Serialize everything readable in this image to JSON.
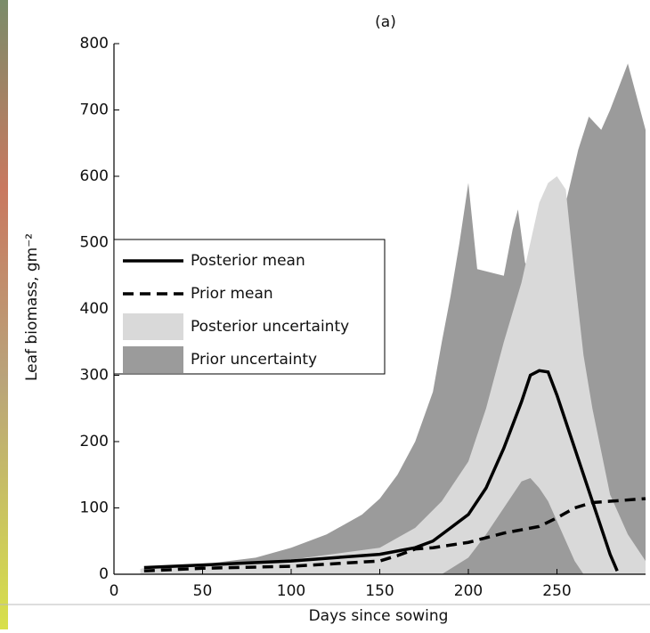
{
  "chart_data": {
    "type": "area-band-line",
    "title": "(a)",
    "xlabel": "Days since sowing",
    "ylabel": "Leaf biomass, gm⁻²",
    "xlim": [
      0,
      300
    ],
    "ylim": [
      0,
      800
    ],
    "xticks": [
      0,
      50,
      100,
      150,
      200,
      250
    ],
    "yticks": [
      0,
      100,
      200,
      300,
      400,
      500,
      600,
      700,
      800
    ],
    "series": [
      {
        "name": "Prior uncertainty",
        "kind": "band",
        "color": "#9b9b9b",
        "x": [
          15,
          30,
          50,
          80,
          100,
          120,
          140,
          150,
          160,
          170,
          180,
          185,
          190,
          195,
          200,
          205,
          220,
          225,
          228,
          232,
          236,
          245,
          255,
          262,
          268,
          275,
          280,
          290,
          295,
          300
        ],
        "upper": [
          8,
          12,
          15,
          25,
          40,
          60,
          90,
          114,
          150,
          200,
          275,
          350,
          420,
          500,
          590,
          460,
          450,
          520,
          550,
          470,
          450,
          500,
          560,
          640,
          690,
          670,
          700,
          770,
          720,
          670
        ],
        "lower": [
          0,
          0,
          0,
          0,
          0,
          0,
          0,
          0,
          0,
          0,
          0,
          0,
          0,
          0,
          0,
          0,
          0,
          0,
          0,
          0,
          0,
          0,
          0,
          0,
          0,
          0,
          0,
          0,
          0,
          0
        ]
      },
      {
        "name": "Posterior uncertainty",
        "kind": "band",
        "color": "#d9d9d9",
        "x": [
          15,
          50,
          100,
          150,
          170,
          185,
          200,
          210,
          220,
          230,
          235,
          240,
          245,
          250,
          255,
          260,
          265,
          270,
          280,
          290,
          300
        ],
        "upper": [
          8,
          12,
          22,
          40,
          70,
          110,
          170,
          250,
          350,
          440,
          500,
          560,
          590,
          600,
          580,
          450,
          330,
          250,
          120,
          60,
          20
        ],
        "lower": [
          0,
          0,
          0,
          0,
          0,
          0,
          25,
          60,
          100,
          140,
          145,
          130,
          110,
          80,
          50,
          20,
          0,
          0,
          0,
          0,
          0
        ]
      },
      {
        "name": "Posterior mean",
        "kind": "line",
        "dash": false,
        "color": "#000000",
        "x": [
          17,
          50,
          100,
          150,
          170,
          180,
          190,
          200,
          210,
          220,
          230,
          235,
          240,
          245,
          250,
          260,
          270,
          280,
          284
        ],
        "values": [
          10,
          14,
          20,
          30,
          40,
          50,
          70,
          90,
          130,
          190,
          260,
          300,
          307,
          305,
          270,
          190,
          110,
          30,
          5
        ]
      },
      {
        "name": "Prior mean",
        "kind": "line",
        "dash": true,
        "color": "#000000",
        "x": [
          17,
          50,
          100,
          150,
          160,
          170,
          180,
          200,
          220,
          240,
          250,
          260,
          270,
          280,
          290,
          300
        ],
        "values": [
          5,
          9,
          12,
          20,
          28,
          38,
          40,
          48,
          62,
          72,
          85,
          100,
          108,
          110,
          112,
          114
        ]
      }
    ],
    "legend_order": [
      2,
      3,
      1,
      0
    ]
  }
}
